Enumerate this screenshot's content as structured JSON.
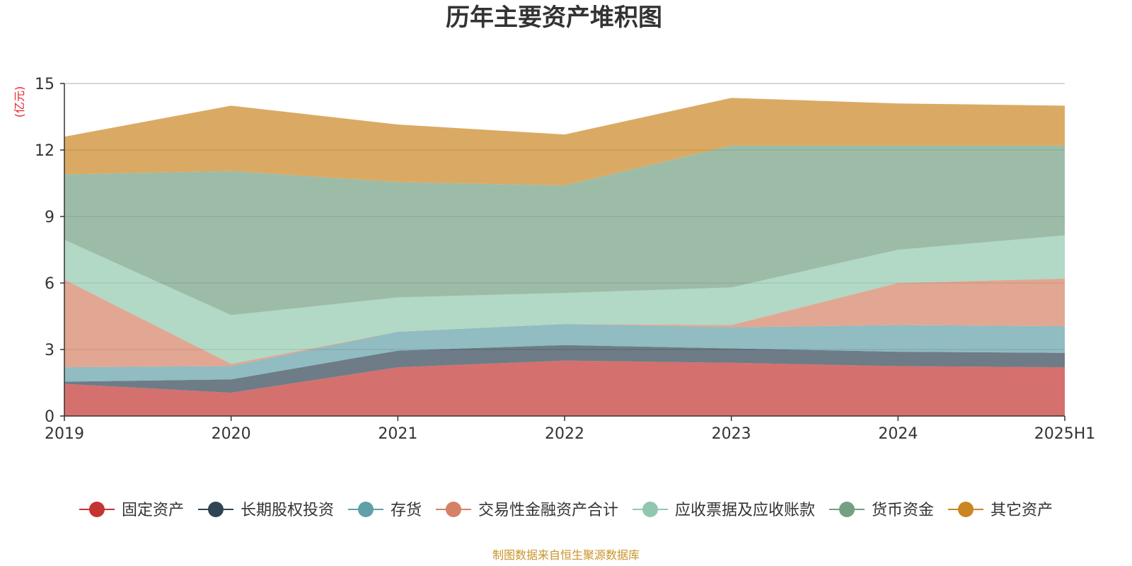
{
  "chart_data": {
    "type": "area",
    "stacked": true,
    "title": "历年主要资产堆积图",
    "unit_label": "(亿元)",
    "categories": [
      "2019",
      "2020",
      "2021",
      "2022",
      "2023",
      "2024",
      "2025H1"
    ],
    "ylim": [
      0,
      15
    ],
    "yticks": [
      "0",
      "3",
      "6",
      "9",
      "12",
      "15"
    ],
    "grid": true,
    "legend_position": "bottom",
    "series": [
      {
        "name": "固定资产",
        "color": "#c23531",
        "values": [
          1.45,
          1.05,
          2.2,
          2.5,
          2.4,
          2.25,
          2.2
        ]
      },
      {
        "name": "长期股权投资",
        "color": "#2f4554",
        "values": [
          0.1,
          0.6,
          0.75,
          0.7,
          0.65,
          0.65,
          0.65
        ]
      },
      {
        "name": "存货",
        "color": "#61a0a8",
        "values": [
          0.65,
          0.6,
          0.85,
          0.95,
          0.95,
          1.2,
          1.2
        ]
      },
      {
        "name": "交易性金融资产合计",
        "color": "#d48265",
        "values": [
          3.95,
          0.1,
          0.0,
          0.0,
          0.1,
          1.9,
          2.15
        ]
      },
      {
        "name": "应收票据及应收账款",
        "color": "#91c7ae",
        "values": [
          1.8,
          2.2,
          1.55,
          1.4,
          1.7,
          1.5,
          1.95
        ]
      },
      {
        "name": "货币资金",
        "color": "#749f83",
        "values": [
          2.95,
          6.5,
          5.2,
          4.85,
          6.4,
          4.7,
          4.05
        ]
      },
      {
        "name": "其它资产",
        "color": "#ca8622",
        "values": [
          1.7,
          2.95,
          2.6,
          2.3,
          2.15,
          1.9,
          1.8
        ]
      }
    ],
    "source": "制图数据来自恒生聚源数据库"
  }
}
